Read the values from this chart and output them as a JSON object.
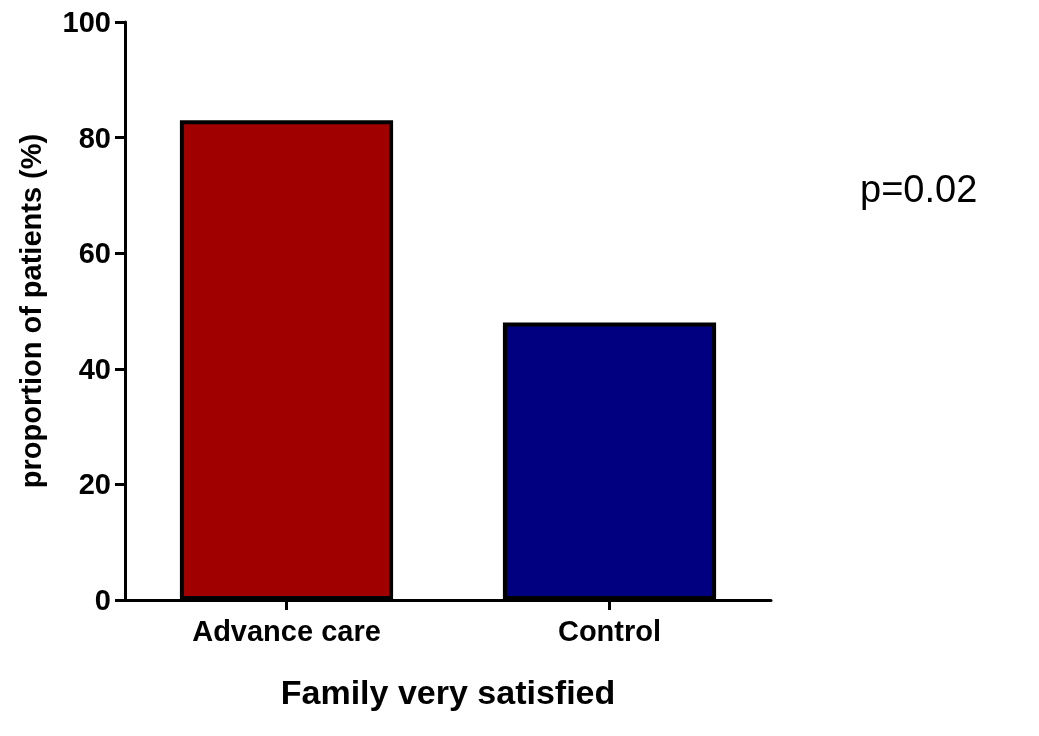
{
  "chart_data": {
    "type": "bar",
    "xlabel": "Family very satisfied",
    "ylabel": "proportion of patients (%)",
    "categories": [
      "Advance care",
      "Control"
    ],
    "values": [
      83,
      48
    ],
    "colors": [
      "#a00000",
      "#000080"
    ],
    "ylim": [
      0,
      100
    ],
    "yticks": [
      0,
      20,
      40,
      60,
      80,
      100
    ],
    "grid": false,
    "annotations": [
      "p=0.02"
    ]
  }
}
